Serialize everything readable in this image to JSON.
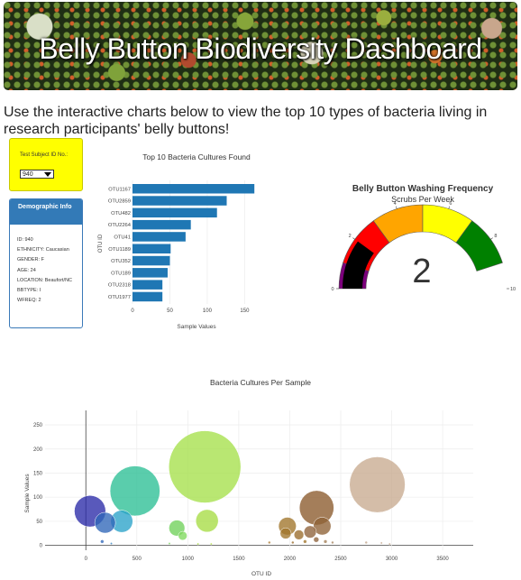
{
  "header": {
    "title": "Belly Button Biodiversity Dashboard"
  },
  "intro_text": "Use the interactive charts below to view the top 10 types of bacteria living in research participants' belly buttons!",
  "selector": {
    "label": "Test Subject ID No.:",
    "value": "940"
  },
  "demographic": {
    "title": "Demographic Info",
    "rows": [
      "ID: 940",
      "ETHNICITY: Caucasian",
      "GENDER: F",
      "AGE: 24",
      "LOCATION: Beaufort/NC",
      "BBTYPE: I",
      "WFREQ: 2"
    ]
  },
  "colors": {
    "banner_title": "#ffffff",
    "selector_bg": "#ffff00",
    "panel_header": "#337ab7",
    "bar": "#1f77b4"
  },
  "chart_data": [
    {
      "type": "bar",
      "orientation": "horizontal",
      "title": "Top 10 Bacteria Cultures Found",
      "xlabel": "Sample Values",
      "ylabel": "OTU ID",
      "categories": [
        "OTU1167",
        "OTU2859",
        "OTU482",
        "OTU2264",
        "OTU41",
        "OTU1189",
        "OTU352",
        "OTU189",
        "OTU2318",
        "OTU1977"
      ],
      "values": [
        163,
        126,
        113,
        78,
        71,
        51,
        50,
        47,
        40,
        40
      ],
      "xticks": [
        "0",
        "50",
        "100",
        "150"
      ],
      "xlim": [
        0,
        170
      ]
    },
    {
      "type": "gauge",
      "title": "Belly Button Washing Frequency",
      "subtitle": "Scrubs Per Week",
      "value": 2,
      "value_label": "2",
      "range": [
        0,
        10
      ],
      "tick_labels": [
        "0",
        "2",
        "4",
        "6",
        "8",
        "10"
      ],
      "bands": [
        {
          "from": 0,
          "to": 1,
          "color": "#7b007b"
        },
        {
          "from": 1,
          "to": 3,
          "color": "#ff0000"
        },
        {
          "from": 3,
          "to": 5,
          "color": "#ffa500"
        },
        {
          "from": 5,
          "to": 7,
          "color": "#ffff00"
        },
        {
          "from": 7,
          "to": 9,
          "color": "#008000"
        }
      ],
      "needle_color": "#000000"
    },
    {
      "type": "scatter",
      "subtype": "bubble",
      "title": "Bacteria Cultures Per Sample",
      "xlabel": "OTU ID",
      "ylabel": "Sample Values",
      "xlim": [
        -400,
        3800
      ],
      "ylim": [
        -10,
        280
      ],
      "xticks": [
        0,
        500,
        1000,
        1500,
        2000,
        2500,
        3000,
        3500
      ],
      "yticks": [
        0,
        50,
        100,
        150,
        200,
        250
      ],
      "points": [
        {
          "x": 41,
          "y": 71,
          "color": "#2a2aa8"
        },
        {
          "x": 189,
          "y": 47,
          "color": "#2f66b9"
        },
        {
          "x": 352,
          "y": 50,
          "color": "#2aa3c9"
        },
        {
          "x": 482,
          "y": 113,
          "color": "#2bbf95"
        },
        {
          "x": 1167,
          "y": 163,
          "color": "#a5e04a"
        },
        {
          "x": 1189,
          "y": 51,
          "color": "#a6dd44"
        },
        {
          "x": 893,
          "y": 36,
          "color": "#6fd15a"
        },
        {
          "x": 950,
          "y": 20,
          "color": "#7fd85e"
        },
        {
          "x": 2264,
          "y": 78,
          "color": "#8b5a2b"
        },
        {
          "x": 2318,
          "y": 40,
          "color": "#8e6236"
        },
        {
          "x": 2859,
          "y": 126,
          "color": "#c8ab90"
        },
        {
          "x": 1977,
          "y": 40,
          "color": "#a0742a"
        },
        {
          "x": 1960,
          "y": 25,
          "color": "#a0742a"
        },
        {
          "x": 2090,
          "y": 22,
          "color": "#9a6c2c"
        },
        {
          "x": 2200,
          "y": 28,
          "color": "#8e623a"
        },
        {
          "x": 2260,
          "y": 12,
          "color": "#8e623a"
        },
        {
          "x": 2150,
          "y": 8,
          "color": "#a0742a"
        },
        {
          "x": 2350,
          "y": 8,
          "color": "#a27d54"
        },
        {
          "x": 2030,
          "y": 6,
          "color": "#9a6c2c"
        },
        {
          "x": 1800,
          "y": 6,
          "color": "#b0803a"
        },
        {
          "x": 2420,
          "y": 6,
          "color": "#a88560"
        },
        {
          "x": 2750,
          "y": 6,
          "color": "#c0a58c"
        },
        {
          "x": 2900,
          "y": 5,
          "color": "#c8ab90"
        },
        {
          "x": 2980,
          "y": 3,
          "color": "#c8ab90"
        },
        {
          "x": 160,
          "y": 8,
          "color": "#2f66b9"
        },
        {
          "x": 250,
          "y": 4,
          "color": "#2f80c0"
        },
        {
          "x": 820,
          "y": 4,
          "color": "#79d45c"
        },
        {
          "x": 1230,
          "y": 3,
          "color": "#b5e250"
        },
        {
          "x": 1100,
          "y": 3,
          "color": "#a6dd44"
        }
      ]
    }
  ]
}
